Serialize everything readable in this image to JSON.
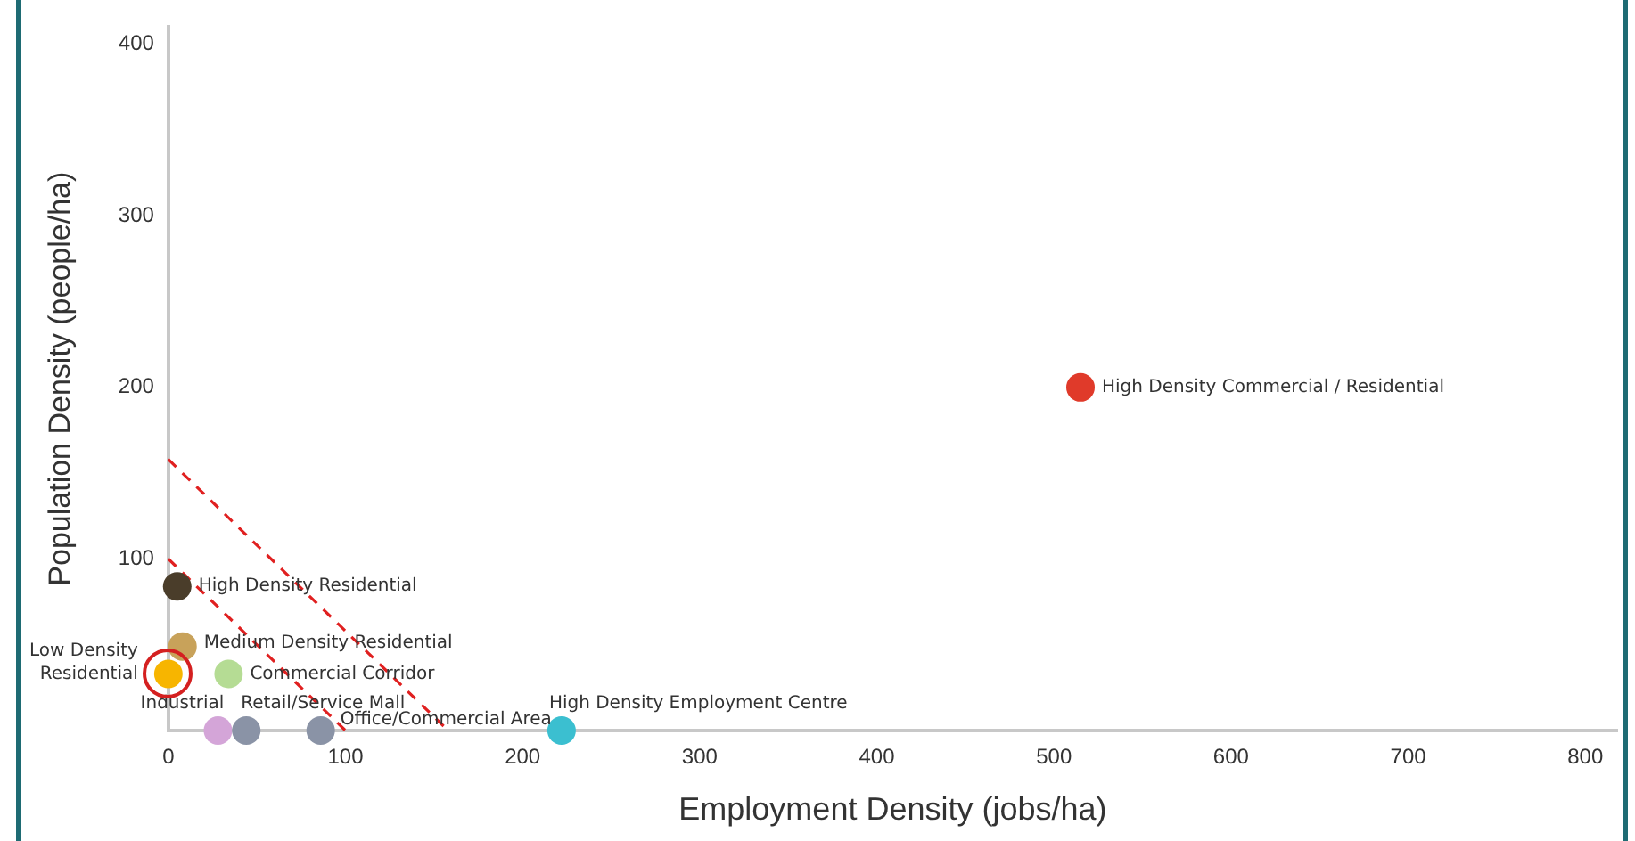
{
  "chart_data": {
    "type": "scatter",
    "xlabel": "Employment Density (jobs/ha)",
    "ylabel": "Population Density (people/ha)",
    "xlim": [
      0,
      818
    ],
    "ylim": [
      0,
      410
    ],
    "xticks": [
      0,
      100,
      200,
      300,
      400,
      500,
      600,
      700,
      800
    ],
    "yticks": [
      100,
      200,
      300,
      400
    ],
    "grid": false,
    "legend": false,
    "marker": "circle",
    "series": [
      {
        "type": "scatter",
        "x": [
          515,
          5,
          8,
          0,
          34,
          28,
          44,
          86,
          222
        ],
        "values": [
          200,
          84,
          49,
          33,
          33,
          0,
          0,
          0,
          0
        ],
        "colors": [
          "#e03a2a",
          "#4a3d2a",
          "#c8a25a",
          "#f7b500",
          "#b5dc94",
          "#d4a5d8",
          "#8a93a6",
          "#8a93a6",
          "#3bbfd0"
        ]
      },
      {
        "type": "line",
        "x": [
          0,
          100
        ],
        "values": [
          100,
          0
        ],
        "color": "#e02020",
        "line_style": "dashed",
        "marker": "none"
      },
      {
        "type": "line",
        "x": [
          0,
          158
        ],
        "values": [
          158,
          0
        ],
        "color": "#e02020",
        "line_style": "dashed",
        "marker": "none"
      }
    ],
    "annotations": [
      {
        "text": "High Density Commercial / Residential",
        "x": 515,
        "y": 200
      },
      {
        "text": "High Density Residential",
        "x": 5,
        "y": 84
      },
      {
        "text": "Medium Density Residential",
        "x": 8,
        "y": 49
      },
      {
        "text": "Low Density Residential",
        "x": 0,
        "y": 33
      },
      {
        "text": "Commercial Corridor",
        "x": 34,
        "y": 33
      },
      {
        "text": "Industrial",
        "x": 28,
        "y": 0
      },
      {
        "text": "Retail/Service Mall",
        "x": 44,
        "y": 0
      },
      {
        "text": "Office/Commercial Area",
        "x": 86,
        "y": 0
      },
      {
        "text": "High Density Employment Centre",
        "x": 222,
        "y": 0
      }
    ]
  }
}
